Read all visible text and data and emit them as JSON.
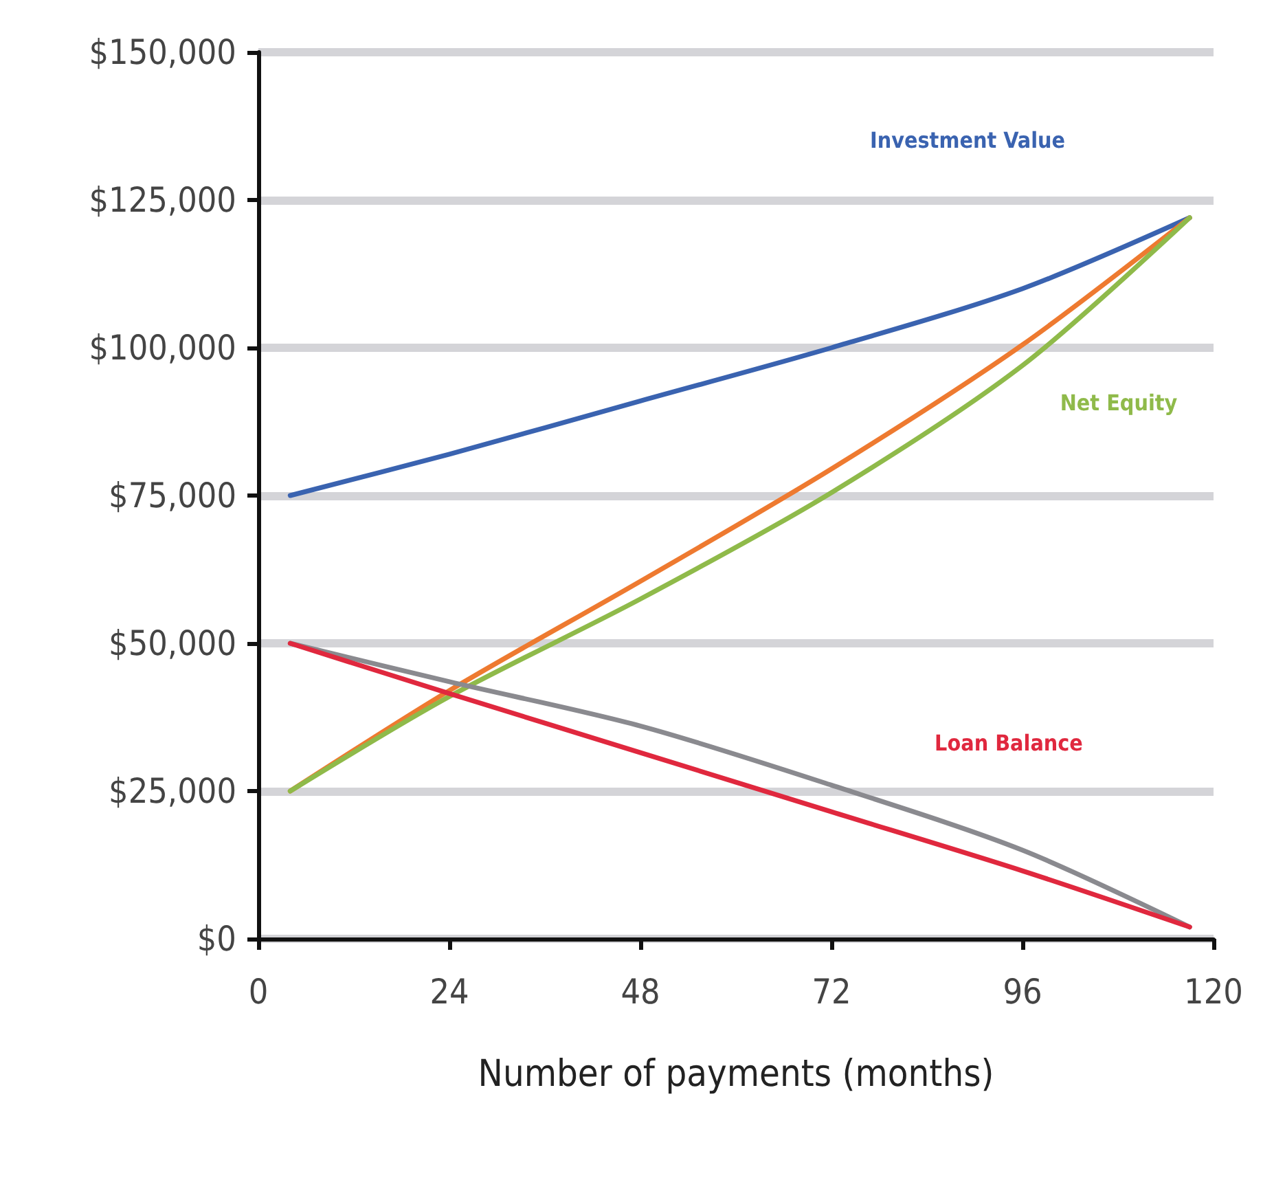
{
  "chart_data": {
    "type": "line",
    "xlabel": "Number of payments (months)",
    "xlim": [
      0,
      120
    ],
    "xticks": [
      0,
      24,
      48,
      72,
      96,
      120
    ],
    "ylim": [
      0,
      150000
    ],
    "yticks": [
      {
        "value": 0,
        "label": "$0"
      },
      {
        "value": 25000,
        "label": "$25,000"
      },
      {
        "value": 50000,
        "label": "$50,000"
      },
      {
        "value": 75000,
        "label": "$75,000"
      },
      {
        "value": 100000,
        "label": "$100,000"
      },
      {
        "value": 125000,
        "label": "$125,000"
      },
      {
        "value": 150000,
        "label": "$150,000"
      }
    ],
    "grid": "y",
    "legend": false,
    "marker": "none",
    "line_style": "solid",
    "x": [
      4,
      24,
      48,
      72,
      96,
      117
    ],
    "series": [
      {
        "name": "Investment Value",
        "color": "#3a63b0",
        "values": [
          75000,
          82000,
          91000,
          100000,
          110000,
          122000
        ]
      },
      {
        "color": "#ee7a30",
        "values": [
          25000,
          42000,
          60500,
          79500,
          100500,
          122000
        ]
      },
      {
        "name": "Net Equity",
        "color": "#8fba4a",
        "values": [
          25000,
          41000,
          57500,
          75500,
          97000,
          122000
        ]
      },
      {
        "color": "#8a8a8f",
        "values": [
          50000,
          43500,
          36000,
          26000,
          15000,
          2000
        ]
      },
      {
        "name": "Loan Balance",
        "color": "#e0283e",
        "values": [
          50000,
          41500,
          31500,
          21500,
          11500,
          2000
        ]
      }
    ]
  }
}
